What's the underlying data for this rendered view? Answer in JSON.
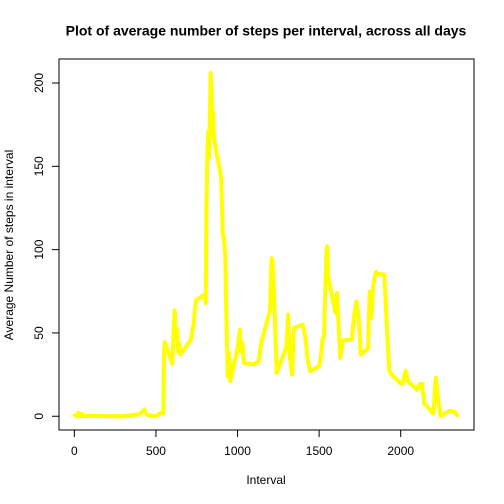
{
  "chart_data": {
    "type": "line",
    "title": "Plot of average number of steps per interval, across all days",
    "xlabel": "Interval",
    "ylabel": "Average Number of steps in interval",
    "color": "#ffff00",
    "x": [
      0,
      5,
      10,
      15,
      20,
      25,
      30,
      35,
      40,
      45,
      50,
      55,
      100,
      200,
      300,
      400,
      430,
      445,
      500,
      530,
      545,
      550,
      555,
      600,
      610,
      615,
      620,
      625,
      630,
      635,
      640,
      650,
      700,
      715,
      720,
      730,
      745,
      800,
      805,
      810,
      815,
      820,
      825,
      830,
      835,
      840,
      845,
      850,
      855,
      900,
      905,
      910,
      915,
      920,
      925,
      930,
      935,
      940,
      945,
      950,
      955,
      1000,
      1015,
      1020,
      1030,
      1040,
      1100,
      1130,
      1145,
      1200,
      1205,
      1210,
      1215,
      1230,
      1240,
      1300,
      1310,
      1320,
      1335,
      1345,
      1400,
      1415,
      1430,
      1445,
      1500,
      1510,
      1520,
      1530,
      1545,
      1550,
      1555,
      1600,
      1610,
      1615,
      1630,
      1645,
      1700,
      1715,
      1730,
      1745,
      1755,
      1800,
      1810,
      1820,
      1830,
      1845,
      1850,
      1855,
      1900,
      1915,
      1930,
      1945,
      2000,
      2010,
      2030,
      2045,
      2100,
      2115,
      2130,
      2145,
      2200,
      2215,
      2230,
      2245,
      2300,
      2330,
      2345,
      2355
    ],
    "values": [
      1.7,
      0.3,
      0.1,
      0.2,
      0.1,
      2.1,
      0.5,
      0.9,
      0,
      1.5,
      0.3,
      0.1,
      0.3,
      0,
      0,
      1.2,
      4.1,
      0.8,
      0,
      2,
      1.6,
      39.5,
      44.5,
      31.5,
      53.8,
      63.5,
      50,
      47,
      52,
      39,
      44,
      37,
      44,
      46,
      49.9,
      55,
      69.5,
      73,
      68,
      129,
      157.5,
      171,
      155,
      177,
      206,
      195.9,
      179.6,
      183,
      167,
      143,
      124,
      109,
      108,
      103,
      95.9,
      66,
      45,
      24,
      38,
      35,
      21,
      40.6,
      52,
      38.9,
      44,
      32,
      31,
      33,
      44,
      63.9,
      87.7,
      94.8,
      92.8,
      55,
      26,
      42,
      61,
      36,
      25,
      53,
      55,
      48,
      34,
      27,
      30,
      35,
      46,
      48,
      98.7,
      102,
      84,
      62,
      74,
      63,
      35,
      45.5,
      46,
      61,
      69,
      56,
      37,
      40.7,
      74.7,
      59,
      77,
      85.6,
      86.6,
      85.6,
      84.9,
      53.6,
      27.4,
      25,
      19.6,
      19.3,
      27.3,
      21,
      15.9,
      19.2,
      19.6,
      7.8,
      1.6,
      23,
      9.8,
      0.1,
      3.3,
      2.6,
      0.6,
      1.1
    ],
    "xlim": [
      -94.2,
      2449.2
    ],
    "ylim": [
      -8.25,
      214.4
    ],
    "xticks": [
      0,
      500,
      1000,
      1500,
      2000
    ],
    "yticks": [
      0,
      50,
      100,
      150,
      200
    ]
  }
}
